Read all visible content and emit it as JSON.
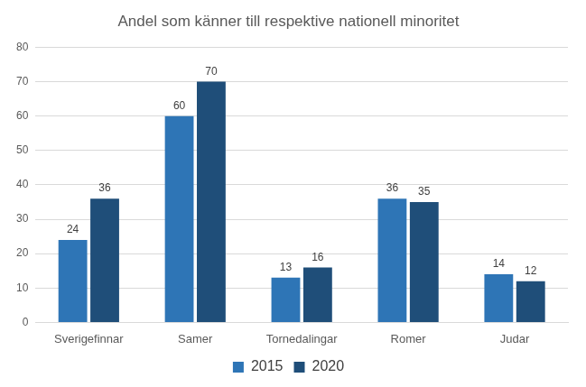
{
  "chart_data": {
    "type": "bar",
    "title": "Andel som känner till respektive nationell minoritet",
    "categories": [
      "Sverigefinnar",
      "Samer",
      "Tornedalingar",
      "Romer",
      "Judar"
    ],
    "series": [
      {
        "name": "2015",
        "color": "#2e75b6",
        "values": [
          24,
          60,
          13,
          36,
          14
        ]
      },
      {
        "name": "2020",
        "color": "#1f4e79",
        "values": [
          36,
          70,
          16,
          35,
          12
        ]
      }
    ],
    "ylim": [
      0,
      80
    ],
    "yticks": [
      0,
      10,
      20,
      30,
      40,
      50,
      60,
      70,
      80
    ],
    "grid": true,
    "legend": "bottom",
    "data_labels": true
  }
}
